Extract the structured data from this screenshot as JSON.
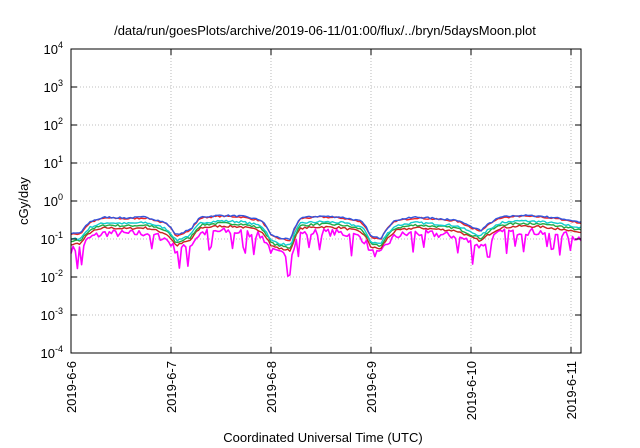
{
  "chart_data": {
    "type": "line",
    "title": "/data/run/goesPlots/archive/2019-06-11/01:00/flux/../bryn/5daysMoon.plot",
    "xlabel": "Coordinated Universal Time (UTC)",
    "ylabel": "cGy/day",
    "y_scale": "log",
    "ylim": [
      0.0001,
      10000
    ],
    "xlim_days": [
      0,
      5.1
    ],
    "grid": true,
    "x_ticks": [
      {
        "label": "2019-6-6",
        "day": 0
      },
      {
        "label": "2019-6-7",
        "day": 1
      },
      {
        "label": "2019-6-8",
        "day": 2
      },
      {
        "label": "2019-6-9",
        "day": 3
      },
      {
        "label": "2019-6-10",
        "day": 4
      },
      {
        "label": "2019-6-11",
        "day": 5
      }
    ],
    "y_ticks": [
      {
        "base": "10",
        "exp": "-4",
        "value": 0.0001
      },
      {
        "base": "10",
        "exp": "-3",
        "value": 0.001
      },
      {
        "base": "10",
        "exp": "-2",
        "value": 0.01
      },
      {
        "base": "10",
        "exp": "-1",
        "value": 0.1
      },
      {
        "base": "10",
        "exp": "0",
        "value": 1
      },
      {
        "base": "10",
        "exp": "1",
        "value": 10
      },
      {
        "base": "10",
        "exp": "2",
        "value": 100
      },
      {
        "base": "10",
        "exp": "3",
        "value": 1000
      },
      {
        "base": "10",
        "exp": "4",
        "value": 10000
      }
    ],
    "series": [
      {
        "color": "#ff00ff",
        "factor": 0.4,
        "noise": 0.28,
        "dips": true
      },
      {
        "color": "#cc2222",
        "factor": 0.55,
        "noise": 0.08
      },
      {
        "color": "#22aa44",
        "factor": 0.65,
        "noise": 0.08
      },
      {
        "color": "#11cccc",
        "factor": 0.75,
        "noise": 0.08
      },
      {
        "color": "#ee2222",
        "factor": 1.0,
        "noise": 0.06
      },
      {
        "color": "#3355dd",
        "factor": 1.05,
        "noise": 0.06
      }
    ],
    "base_profile": [
      [
        0.0,
        0.13
      ],
      [
        0.1,
        0.14
      ],
      [
        0.2,
        0.28
      ],
      [
        0.35,
        0.36
      ],
      [
        0.55,
        0.34
      ],
      [
        0.75,
        0.36
      ],
      [
        0.95,
        0.25
      ],
      [
        1.05,
        0.12
      ],
      [
        1.2,
        0.17
      ],
      [
        1.3,
        0.36
      ],
      [
        1.5,
        0.4
      ],
      [
        1.7,
        0.38
      ],
      [
        1.9,
        0.3
      ],
      [
        2.0,
        0.12
      ],
      [
        2.1,
        0.1
      ],
      [
        2.2,
        0.09
      ],
      [
        2.3,
        0.35
      ],
      [
        2.5,
        0.38
      ],
      [
        2.7,
        0.36
      ],
      [
        2.9,
        0.28
      ],
      [
        3.0,
        0.11
      ],
      [
        3.1,
        0.1
      ],
      [
        3.25,
        0.3
      ],
      [
        3.45,
        0.36
      ],
      [
        3.65,
        0.33
      ],
      [
        3.85,
        0.3
      ],
      [
        4.0,
        0.2
      ],
      [
        4.1,
        0.16
      ],
      [
        4.3,
        0.36
      ],
      [
        4.5,
        0.4
      ],
      [
        4.7,
        0.38
      ],
      [
        4.9,
        0.33
      ],
      [
        5.1,
        0.26
      ]
    ]
  }
}
